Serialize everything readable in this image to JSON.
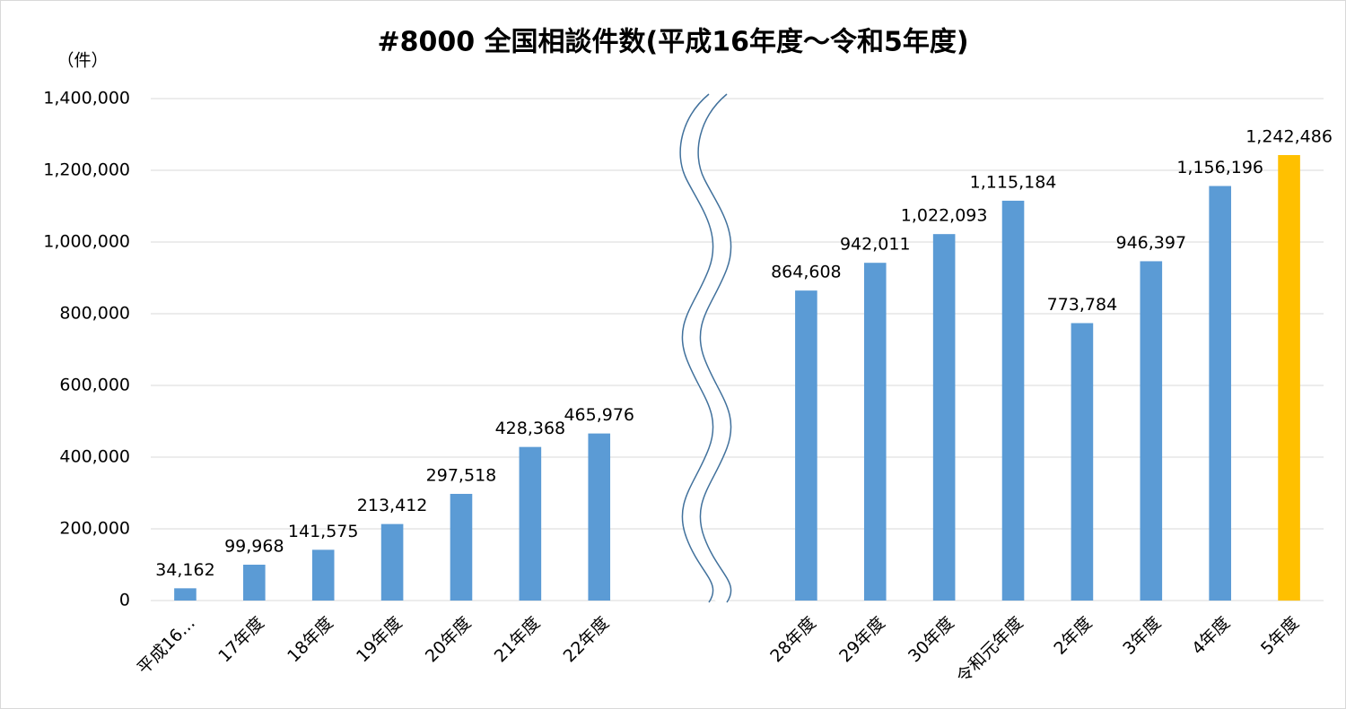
{
  "chart_data": {
    "type": "bar",
    "title": "#8000 全国相談件数(平成16年度～令和5年度)",
    "y_unit": "（件）",
    "categories": [
      "平成16…",
      "17年度",
      "18年度",
      "19年度",
      "20年度",
      "21年度",
      "22年度",
      null,
      null,
      "28年度",
      "29年度",
      "30年度",
      "令和元年度",
      "2年度",
      "3年度",
      "4年度",
      "5年度"
    ],
    "values": [
      34162,
      99968,
      141575,
      213412,
      297518,
      428368,
      465976,
      null,
      null,
      864608,
      942011,
      1022093,
      1115184,
      773784,
      946397,
      1156196,
      1242486
    ],
    "value_labels": [
      "34,162",
      "99,968",
      "141,575",
      "213,412",
      "297,518",
      "428,368",
      "465,976",
      null,
      null,
      "864,608",
      "942,011",
      "1,022,093",
      "1,115,184",
      "773,784",
      "946,397",
      "1,156,196",
      "1,242,486"
    ],
    "colors": [
      "#5b9bd5",
      "#5b9bd5",
      "#5b9bd5",
      "#5b9bd5",
      "#5b9bd5",
      "#5b9bd5",
      "#5b9bd5",
      null,
      null,
      "#5b9bd5",
      "#5b9bd5",
      "#5b9bd5",
      "#5b9bd5",
      "#5b9bd5",
      "#5b9bd5",
      "#5b9bd5",
      "#ffc000"
    ],
    "ylim": [
      0,
      1400000
    ],
    "yticks": [
      0,
      {
        "value": 200000,
        "label": "200,000"
      },
      {
        "value": 400000,
        "label": "400,000"
      },
      {
        "value": 600000,
        "label": "600,000"
      },
      {
        "value": 800000,
        "label": "800,000"
      },
      {
        "value": 1000000,
        "label": "1,000,000"
      },
      {
        "value": 1200000,
        "label": "1,200,000"
      },
      {
        "value": 1400000,
        "label": "1,400,000"
      }
    ],
    "grid": true
  }
}
